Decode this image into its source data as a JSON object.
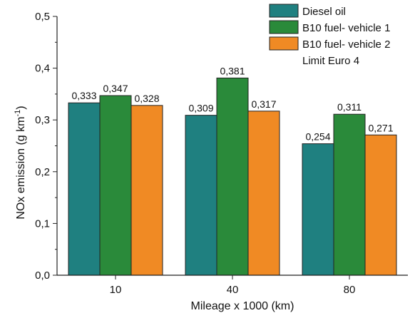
{
  "chart_data": {
    "type": "bar",
    "categories": [
      "10",
      "40",
      "80"
    ],
    "series": [
      {
        "name": "Diesel oil",
        "values": [
          0.333,
          0.309,
          0.254
        ],
        "labels": [
          "0,333",
          "0,309",
          "0,254"
        ],
        "color": "#1f8080"
      },
      {
        "name": "B10 fuel- vehicle 1",
        "values": [
          0.347,
          0.381,
          0.311
        ],
        "labels": [
          "0,347",
          "0,381",
          "0,311"
        ],
        "color": "#2a8a3a"
      },
      {
        "name": "B10 fuel- vehicle 2",
        "values": [
          0.328,
          0.317,
          0.271
        ],
        "labels": [
          "0,328",
          "0,317",
          "0,271"
        ],
        "color": "#f08a24"
      }
    ],
    "legend_extra": "Limit Euro 4",
    "xlabel": "Mileage x 1000 (km)",
    "ylabel_main": "NOx emission (g km",
    "ylabel_sup": "-1",
    "ylabel_end": ")",
    "ylim": [
      0,
      0.5
    ],
    "yticks": [
      0,
      0.1,
      0.2,
      0.3,
      0.4,
      0.5
    ],
    "ytick_labels": [
      "0,0",
      "0,1",
      "0,2",
      "0,3",
      "0,4",
      "0,5"
    ],
    "grid": false,
    "legend_position": "top-right"
  }
}
